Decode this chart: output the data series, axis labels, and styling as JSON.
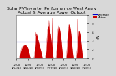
{
  "title": "Solar PV/Inverter Performance West Array\nActual & Average Power Output",
  "title_fontsize": 4.5,
  "bg_color": "#d8d8d8",
  "plot_bg_color": "#ffffff",
  "grid_color": "#dddddd",
  "actual_color": "#cc0000",
  "average_color": "#0000cc",
  "average_value": 0.38,
  "ylim": [
    0,
    1.0
  ],
  "ylabel": "kW",
  "ylabel_fontsize": 3.5,
  "ytick_labels": [
    "0",
    ".2",
    ".4",
    ".6",
    ".8",
    "1"
  ],
  "ytick_vals": [
    0,
    0.2,
    0.4,
    0.6,
    0.8,
    1.0
  ],
  "xtick_labels": [
    "12:00\n1/14/13",
    "12:00\n1/15/13",
    "12:00\n1/16/13",
    "12:00\n1/17/13",
    "12:00\n1/18/13",
    "12:00\n1/19/13",
    "12:00\n1/20/13"
  ],
  "legend_avg": "Average",
  "legend_actual": "Actual",
  "legend_fontsize": 3.0,
  "y_data": [
    0,
    0,
    0,
    0,
    0,
    0,
    0,
    0,
    0,
    0,
    0,
    0,
    0.01,
    0.02,
    0.03,
    0.05,
    0.07,
    0.1,
    0.12,
    0.14,
    0.16,
    0.18,
    0.2,
    0.22,
    0.24,
    0.25,
    0.26,
    0.27,
    0.28,
    0.28,
    0.29,
    0.29,
    0.3,
    0.3,
    0.31,
    0.31,
    0.31,
    0.31,
    0.31,
    0.31,
    0.31,
    0.31,
    0.3,
    0.3,
    0.29,
    0.29,
    0.28,
    0.28,
    0.27,
    0.26,
    0.25,
    0.24,
    0.22,
    0.2,
    0.18,
    0.16,
    0.14,
    0.12,
    0.1,
    0.07,
    0.05,
    0.03,
    0.02,
    0.01,
    0,
    0,
    0,
    0,
    0,
    0,
    0,
    0,
    0,
    0,
    0,
    0,
    0,
    0,
    0,
    0.01,
    0.03,
    0.05,
    0.09,
    0.14,
    0.2,
    0.27,
    0.34,
    0.4,
    0.46,
    0.52,
    0.55,
    0.56,
    0.54,
    0.52,
    0.5,
    0.48,
    0.46,
    0.44,
    0.42,
    0.4,
    0.38,
    0.36,
    0.34,
    0.32,
    0.3,
    0.28,
    0.26,
    0.24,
    0.22,
    0.2,
    0.18,
    0.16,
    0.14,
    0.12,
    0.1,
    0.07,
    0.05,
    0.03,
    0.01,
    0,
    0,
    0,
    0,
    0,
    0,
    0,
    0,
    0,
    0,
    0,
    0,
    0.01,
    0.03,
    0.06,
    0.1,
    0.16,
    0.23,
    0.31,
    0.39,
    0.47,
    0.55,
    0.62,
    0.67,
    0.71,
    0.74,
    0.75,
    0.73,
    0.71,
    0.69,
    0.67,
    0.65,
    0.63,
    0.61,
    0.59,
    0.57,
    0.55,
    0.5,
    0.45,
    0.4,
    0.35,
    0.3,
    0.25,
    0.2,
    0.15,
    0.1,
    0.06,
    0.03,
    0.01,
    0,
    0,
    0,
    0,
    0,
    0,
    0,
    0,
    0,
    0,
    0,
    0.01,
    0.04,
    0.08,
    0.14,
    0.22,
    0.31,
    0.4,
    0.5,
    0.58,
    0.65,
    0.7,
    0.73,
    0.74,
    0.75,
    0.74,
    0.72,
    0.7,
    0.68,
    0.65,
    0.62,
    0.59,
    0.56,
    0.52,
    0.48,
    0.43,
    0.38,
    0.32,
    0.27,
    0.21,
    0.16,
    0.11,
    0.07,
    0.04,
    0.02,
    0.01,
    0,
    0,
    0,
    0,
    0,
    0,
    0,
    0,
    0,
    0,
    0,
    0.01,
    0.03,
    0.06,
    0.11,
    0.18,
    0.26,
    0.35,
    0.44,
    0.53,
    0.61,
    0.68,
    0.73,
    0.76,
    0.78,
    0.79,
    0.78,
    0.77,
    0.75,
    0.73,
    0.7,
    0.67,
    0.63,
    0.59,
    0.54,
    0.49,
    0.43,
    0.37,
    0.31,
    0.24,
    0.18,
    0.13,
    0.08,
    0.04,
    0.02,
    0.01,
    0,
    0,
    0,
    0,
    0,
    0,
    0,
    0,
    0,
    0,
    0,
    0.01,
    0.02,
    0.05,
    0.09,
    0.14,
    0.2,
    0.27,
    0.34,
    0.41,
    0.48,
    0.54,
    0.59,
    0.62,
    0.63,
    0.62,
    0.61,
    0.59,
    0.57,
    0.54,
    0.51,
    0.47,
    0.43,
    0.38,
    0.33,
    0.28,
    0.22,
    0.17,
    0.12,
    0.07,
    0.04,
    0.02,
    0.01,
    0,
    0,
    0,
    0,
    0,
    0,
    0,
    0,
    0,
    0,
    0,
    0,
    0,
    0,
    0,
    0,
    0
  ]
}
